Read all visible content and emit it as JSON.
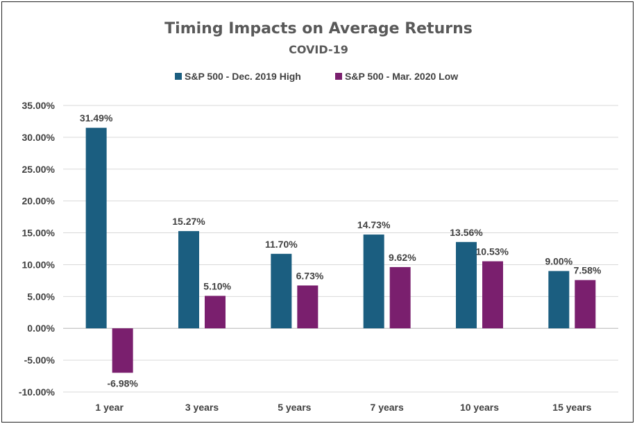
{
  "chart_data": {
    "type": "bar",
    "title": "Timing Impacts on Average Returns",
    "subtitle": "COVID-19",
    "xlabel": "",
    "ylabel": "",
    "categories": [
      "1 year",
      "3 years",
      "5 years",
      "7 years",
      "10 years",
      "15 years"
    ],
    "series": [
      {
        "name": "S&P 500 - Dec. 2019 High",
        "color": "#1b5e80",
        "values": [
          31.49,
          15.27,
          11.7,
          14.73,
          13.56,
          9.0
        ],
        "labels": [
          "31.49%",
          "15.27%",
          "11.70%",
          "14.73%",
          "13.56%",
          "9.00%"
        ]
      },
      {
        "name": "S&P 500 - Mar. 2020 Low",
        "color": "#7a1f6e",
        "values": [
          -6.98,
          5.1,
          6.73,
          9.62,
          10.53,
          7.58
        ],
        "labels": [
          "-6.98%",
          "5.10%",
          "6.73%",
          "9.62%",
          "10.53%",
          "7.58%"
        ]
      }
    ],
    "ylim": [
      -10,
      35
    ],
    "yticks": [
      -10,
      -5,
      0,
      5,
      10,
      15,
      20,
      25,
      30,
      35
    ],
    "ytick_labels": [
      "-10.00%",
      "-5.00%",
      "0.00%",
      "5.00%",
      "10.00%",
      "15.00%",
      "20.00%",
      "25.00%",
      "30.00%",
      "35.00%"
    ],
    "grid": true,
    "legend_position": "top"
  }
}
